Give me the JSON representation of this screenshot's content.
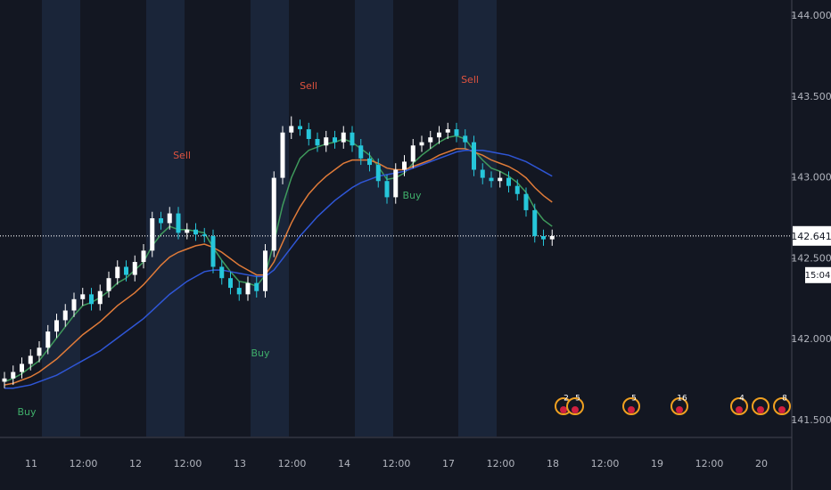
{
  "chart_data": {
    "type": "candlestick",
    "x_labels": [
      "11",
      "12:00",
      "12",
      "12:00",
      "13",
      "12:00",
      "14",
      "12:00",
      "17",
      "12:00",
      "18",
      "12:00",
      "19",
      "12:00",
      "20"
    ],
    "open": [
      141.74,
      141.76,
      141.8,
      141.85,
      141.9,
      141.95,
      142.05,
      142.12,
      142.18,
      142.25,
      142.28,
      142.22,
      142.3,
      142.38,
      142.45,
      142.4,
      142.48,
      142.55,
      142.75,
      142.72,
      142.78,
      142.66,
      142.68,
      142.65,
      142.64,
      142.45,
      142.38,
      142.32,
      142.28,
      142.35,
      142.3,
      142.55,
      143.0,
      143.28,
      143.32,
      143.3,
      143.24,
      143.2,
      143.25,
      143.22,
      143.28,
      143.2,
      143.12,
      143.08,
      142.98,
      142.88,
      143.05,
      143.1,
      143.2,
      143.22,
      143.25,
      143.28,
      143.3,
      143.26,
      143.22,
      143.05,
      143.0,
      142.98,
      143.0,
      142.95,
      142.9,
      142.8,
      142.64,
      142.62
    ],
    "high": [
      141.8,
      141.84,
      141.89,
      141.94,
      141.99,
      142.09,
      142.16,
      142.22,
      142.29,
      142.32,
      142.32,
      142.34,
      142.42,
      142.49,
      142.49,
      142.52,
      142.59,
      142.79,
      142.79,
      142.82,
      142.82,
      142.72,
      142.72,
      142.69,
      142.68,
      142.49,
      142.42,
      142.36,
      142.39,
      142.39,
      142.59,
      143.04,
      143.32,
      143.38,
      143.36,
      143.34,
      143.28,
      143.29,
      143.29,
      143.32,
      143.32,
      143.24,
      143.16,
      143.12,
      143.02,
      143.09,
      143.14,
      143.24,
      143.26,
      143.29,
      143.32,
      143.34,
      143.34,
      143.3,
      143.26,
      143.09,
      143.04,
      143.04,
      143.04,
      142.99,
      142.94,
      142.84,
      142.68,
      142.68
    ],
    "low": [
      141.7,
      141.72,
      141.76,
      141.81,
      141.86,
      141.91,
      142.01,
      142.08,
      142.14,
      142.21,
      142.18,
      142.18,
      142.26,
      142.34,
      142.36,
      142.36,
      142.44,
      142.51,
      142.68,
      142.68,
      142.62,
      142.62,
      142.61,
      142.6,
      142.41,
      142.34,
      142.28,
      142.24,
      142.24,
      142.26,
      142.26,
      142.51,
      142.96,
      143.24,
      143.26,
      143.2,
      143.16,
      143.16,
      143.18,
      143.18,
      143.16,
      143.08,
      143.04,
      142.94,
      142.84,
      142.84,
      143.01,
      143.06,
      143.16,
      143.18,
      143.21,
      143.24,
      143.22,
      143.18,
      143.01,
      142.96,
      142.94,
      142.94,
      142.91,
      142.86,
      142.76,
      142.6,
      142.58,
      142.58
    ],
    "close": [
      141.76,
      141.8,
      141.85,
      141.9,
      141.95,
      142.05,
      142.12,
      142.18,
      142.25,
      142.28,
      142.22,
      142.3,
      142.38,
      142.45,
      142.4,
      142.48,
      142.55,
      142.75,
      142.72,
      142.78,
      142.66,
      142.68,
      142.65,
      142.64,
      142.45,
      142.38,
      142.32,
      142.28,
      142.35,
      142.3,
      142.55,
      143.0,
      143.28,
      143.32,
      143.3,
      143.24,
      143.2,
      143.25,
      143.22,
      143.28,
      143.2,
      143.12,
      143.08,
      142.98,
      142.88,
      143.05,
      143.1,
      143.2,
      143.22,
      143.25,
      143.28,
      143.3,
      143.26,
      143.22,
      143.05,
      143.0,
      142.98,
      143.0,
      142.95,
      142.9,
      142.8,
      142.64,
      142.62,
      142.64
    ],
    "up_color": "#ffffff",
    "down_color": "#26c6da",
    "series": [
      {
        "color": "#3f9a5c",
        "values": [
          141.74,
          141.76,
          141.79,
          141.83,
          141.87,
          141.94,
          142.01,
          142.08,
          142.15,
          142.21,
          142.23,
          142.26,
          142.3,
          142.35,
          142.38,
          142.43,
          142.48,
          142.58,
          142.65,
          142.7,
          142.68,
          142.68,
          142.67,
          142.66,
          142.57,
          142.49,
          142.42,
          142.36,
          142.35,
          142.33,
          142.4,
          142.6,
          142.83,
          143.0,
          143.12,
          143.17,
          143.19,
          143.21,
          143.22,
          143.24,
          143.22,
          143.18,
          143.14,
          143.07,
          142.99,
          143.0,
          143.03,
          143.09,
          143.14,
          143.18,
          143.22,
          143.25,
          143.26,
          143.24,
          143.17,
          143.11,
          143.06,
          143.04,
          143.01,
          142.97,
          142.91,
          142.81,
          142.74,
          142.7
        ]
      },
      {
        "color": "#e07b39",
        "values": [
          141.72,
          141.73,
          141.75,
          141.77,
          141.8,
          141.84,
          141.88,
          141.93,
          141.98,
          142.03,
          142.07,
          142.11,
          142.16,
          142.21,
          142.25,
          142.29,
          142.34,
          142.4,
          142.46,
          142.51,
          142.54,
          142.56,
          142.58,
          142.59,
          142.57,
          142.54,
          142.5,
          142.46,
          142.43,
          142.4,
          142.4,
          142.48,
          142.6,
          142.72,
          142.82,
          142.9,
          142.96,
          143.01,
          143.05,
          143.09,
          143.11,
          143.11,
          143.11,
          143.09,
          143.06,
          143.05,
          143.05,
          143.07,
          143.09,
          143.11,
          143.14,
          143.16,
          143.18,
          143.18,
          143.16,
          143.14,
          143.11,
          143.09,
          143.07,
          143.04,
          143.0,
          142.94,
          142.89,
          142.85
        ]
      },
      {
        "color": "#2f56d6",
        "values": [
          141.7,
          141.7,
          141.71,
          141.72,
          141.74,
          141.76,
          141.78,
          141.81,
          141.84,
          141.87,
          141.9,
          141.93,
          141.97,
          142.01,
          142.05,
          142.09,
          142.13,
          142.18,
          142.23,
          142.28,
          142.32,
          142.36,
          142.39,
          142.42,
          142.43,
          142.43,
          142.42,
          142.41,
          142.4,
          142.39,
          142.39,
          142.43,
          142.5,
          142.57,
          142.64,
          142.7,
          142.76,
          142.81,
          142.86,
          142.9,
          142.94,
          142.97,
          142.99,
          143.01,
          143.02,
          143.03,
          143.04,
          143.06,
          143.08,
          143.1,
          143.12,
          143.14,
          143.16,
          143.17,
          143.17,
          143.17,
          143.16,
          143.15,
          143.14,
          143.12,
          143.1,
          143.07,
          143.04,
          143.01
        ]
      }
    ],
    "ylim": [
      141.401,
      144.099
    ],
    "yticks": [
      {
        "value": 141.5,
        "label": "141.500"
      },
      {
        "value": 142,
        "label": "142.000"
      },
      {
        "value": 142.5,
        "label": "142.500"
      },
      {
        "value": 143,
        "label": "143.000"
      },
      {
        "value": 143.5,
        "label": "143.500"
      },
      {
        "value": 144,
        "label": "144.000"
      }
    ],
    "last_price": {
      "value": 142.641,
      "label": "142.641"
    },
    "countdown": "15:04",
    "annotations": [
      {
        "text": "Buy",
        "color": "#3fae6a"
      },
      {
        "text": "Sell",
        "color": "#e0533f"
      },
      {
        "text": "Buy",
        "color": "#3fae6a"
      },
      {
        "text": "Sell",
        "color": "#e0533f"
      },
      {
        "text": "Buy",
        "color": "#3fae6a"
      },
      {
        "text": "Sell",
        "color": "#e0533f"
      }
    ],
    "events": [
      "2",
      "5",
      "5",
      "16",
      "4",
      "8"
    ]
  }
}
